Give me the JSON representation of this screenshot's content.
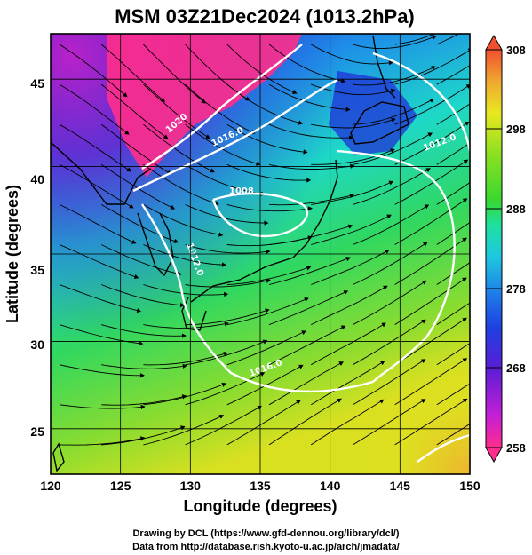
{
  "title": "MSM 03Z21Dec2024 (1013.2hPa)",
  "chart_data": {
    "type": "heatmap",
    "title": "MSM 03Z21Dec2024 (1013.2hPa)",
    "xlabel": "Longitude (degrees)",
    "ylabel": "Latitude  (degrees)",
    "xlim": [
      120,
      150
    ],
    "ylim": [
      22.4,
      47.6
    ],
    "x_ticks": [
      "120",
      "125",
      "130",
      "135",
      "140",
      "145",
      "150"
    ],
    "y_ticks": [
      "25",
      "30",
      "35",
      "40",
      "45"
    ],
    "grid": true,
    "colorbar": {
      "min": 258,
      "max": 308,
      "ticks": [
        "308",
        "298",
        "288",
        "278",
        "268",
        "258"
      ],
      "colors": [
        "#ff2d8c",
        "#c41fd6",
        "#5a1ed6",
        "#1e40e0",
        "#1e78e8",
        "#1ec8e0",
        "#1ee0a0",
        "#38d830",
        "#8ee020",
        "#e8e820",
        "#f0a830",
        "#f05030"
      ]
    },
    "isobars": [
      {
        "label": "1020",
        "value": 1020
      },
      {
        "label": "1016.0",
        "value": 1016.0
      },
      {
        "label": "1012.0",
        "value": 1012.0
      },
      {
        "label": "1008",
        "value": 1008
      },
      {
        "label": "1012.0",
        "value": 1012.0
      },
      {
        "label": "1016.0",
        "value": 1016.0
      }
    ]
  },
  "credits": {
    "line1": "Drawing by DCL (https://www.gfd-dennou.org/library/dcl/)",
    "line2": "Data from http://database.rish.kyoto-u.ac.jp/arch/jmadata/"
  }
}
